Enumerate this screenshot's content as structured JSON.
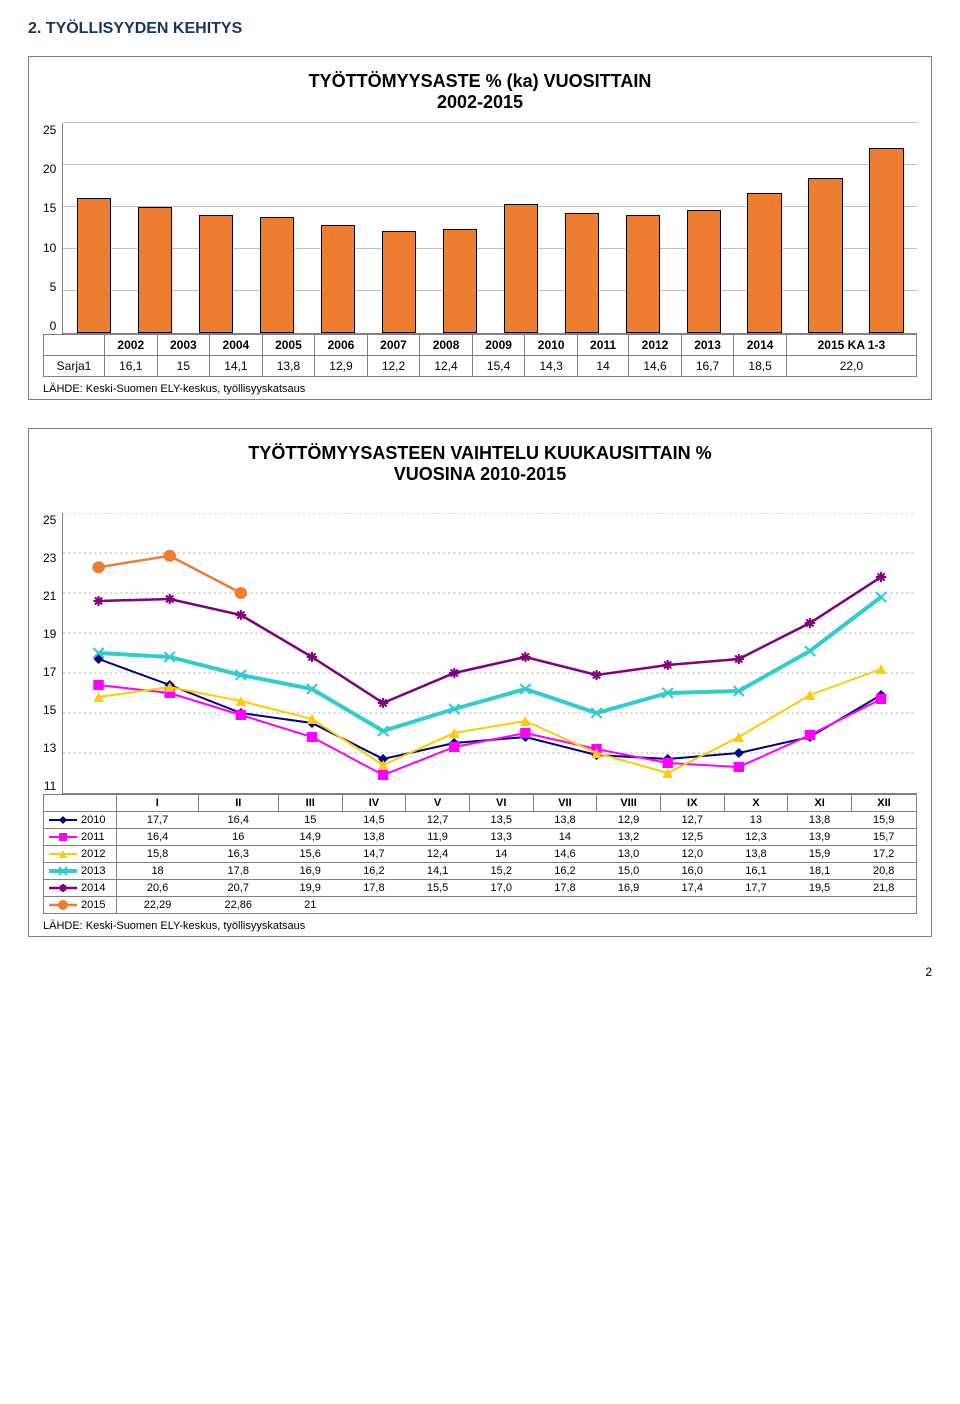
{
  "section_heading": "2. TYÖLLISYYDEN KEHITYS",
  "page_number": "2",
  "bar_chart": {
    "title_line1": "TYÖTTÖMYYSASTE % (ka) VUOSITTAIN",
    "title_line2": "2002-2015",
    "type": "bar",
    "categories": [
      "2002",
      "2003",
      "2004",
      "2005",
      "2006",
      "2007",
      "2008",
      "2009",
      "2010",
      "2011",
      "2012",
      "2013",
      "2014",
      "2015 KA 1-3"
    ],
    "values": [
      16.1,
      15,
      14.1,
      13.8,
      12.9,
      12.2,
      12.4,
      15.4,
      14.3,
      14,
      14.6,
      16.7,
      18.5,
      22.0
    ],
    "display_values": [
      "16,1",
      "15",
      "14,1",
      "13,8",
      "12,9",
      "12,2",
      "12,4",
      "15,4",
      "14,3",
      "14",
      "14,6",
      "16,7",
      "18,5",
      "22,0"
    ],
    "row_label": "Sarja1",
    "bar_fill": "#ed7d31",
    "bar_stroke": "#000000",
    "yticks": [
      0,
      5,
      10,
      15,
      20,
      25
    ],
    "ylim": [
      0,
      25
    ],
    "bar_width_pct": 4.0,
    "grid_color": "#c0c0c0",
    "background_color": "#ffffff",
    "source": "LÄHDE: Keski-Suomen ELY-keskus, työllisyyskatsaus"
  },
  "line_chart": {
    "title_line1": "TYÖTTÖMYYSASTEEN VAIHTELU KUUKAUSITTAIN %",
    "title_line2": "VUOSINA 2010-2015",
    "type": "line",
    "x_labels": [
      "I",
      "II",
      "III",
      "IV",
      "V",
      "VI",
      "VII",
      "VIII",
      "IX",
      "X",
      "XI",
      "XII"
    ],
    "yticks": [
      11,
      13,
      15,
      17,
      19,
      21,
      23,
      25
    ],
    "ylim": [
      11,
      25
    ],
    "grid_color": "#b0b0b0",
    "background_color": "#ffffff",
    "series": [
      {
        "name": "2010",
        "color": "#000080",
        "marker": "diamond",
        "line_width": 2,
        "values": [
          17.7,
          16.4,
          15,
          14.5,
          12.7,
          13.5,
          13.8,
          12.9,
          12.7,
          13,
          13.8,
          15.9
        ],
        "display": [
          "17,7",
          "16,4",
          "15",
          "14,5",
          "12,7",
          "13,5",
          "13,8",
          "12,9",
          "12,7",
          "13",
          "13,8",
          "15,9"
        ]
      },
      {
        "name": "2011",
        "color": "#ff00ff",
        "marker": "square",
        "line_width": 2,
        "values": [
          16.4,
          16,
          14.9,
          13.8,
          11.9,
          13.3,
          14,
          13.2,
          12.5,
          12.3,
          13.9,
          15.7
        ],
        "display": [
          "16,4",
          "16",
          "14,9",
          "13,8",
          "11,9",
          "13,3",
          "14",
          "13,2",
          "12,5",
          "12,3",
          "13,9",
          "15,7"
        ]
      },
      {
        "name": "2012",
        "color": "#ffcc00",
        "marker": "triangle",
        "line_width": 2,
        "values": [
          15.8,
          16.3,
          15.6,
          14.7,
          12.4,
          14,
          14.6,
          13.0,
          12.0,
          13.8,
          15.9,
          17.2
        ],
        "display": [
          "15,8",
          "16,3",
          "15,6",
          "14,7",
          "12,4",
          "14",
          "14,6",
          "13,0",
          "12,0",
          "13,8",
          "15,9",
          "17,2"
        ]
      },
      {
        "name": "2013",
        "color": "#33cccc",
        "marker": "x",
        "line_width": 4,
        "values": [
          18,
          17.8,
          16.9,
          16.2,
          14.1,
          15.2,
          16.2,
          15.0,
          16.0,
          16.1,
          18.1,
          20.8
        ],
        "display": [
          "18",
          "17,8",
          "16,9",
          "16,2",
          "14,1",
          "15,2",
          "16,2",
          "15,0",
          "16,0",
          "16,1",
          "18,1",
          "20,8"
        ]
      },
      {
        "name": "2014",
        "color": "#800080",
        "marker": "star",
        "line_width": 2.5,
        "values": [
          20.6,
          20.7,
          19.9,
          17.8,
          15.5,
          17.0,
          17.8,
          16.9,
          17.4,
          17.7,
          19.5,
          21.8
        ],
        "display": [
          "20,6",
          "20,7",
          "19,9",
          "17,8",
          "15,5",
          "17,0",
          "17,8",
          "16,9",
          "17,4",
          "17,7",
          "19,5",
          "21,8"
        ]
      },
      {
        "name": "2015",
        "color": "#ed7d31",
        "marker": "circle",
        "line_width": 2.5,
        "values": [
          22.29,
          22.86,
          21
        ],
        "display": [
          "22,29",
          "22,86",
          "21",
          "",
          "",
          "",
          "",
          "",
          "",
          "",
          "",
          ""
        ]
      }
    ],
    "source": "LÄHDE: Keski-Suomen ELY-keskus, työllisyyskatsaus"
  }
}
